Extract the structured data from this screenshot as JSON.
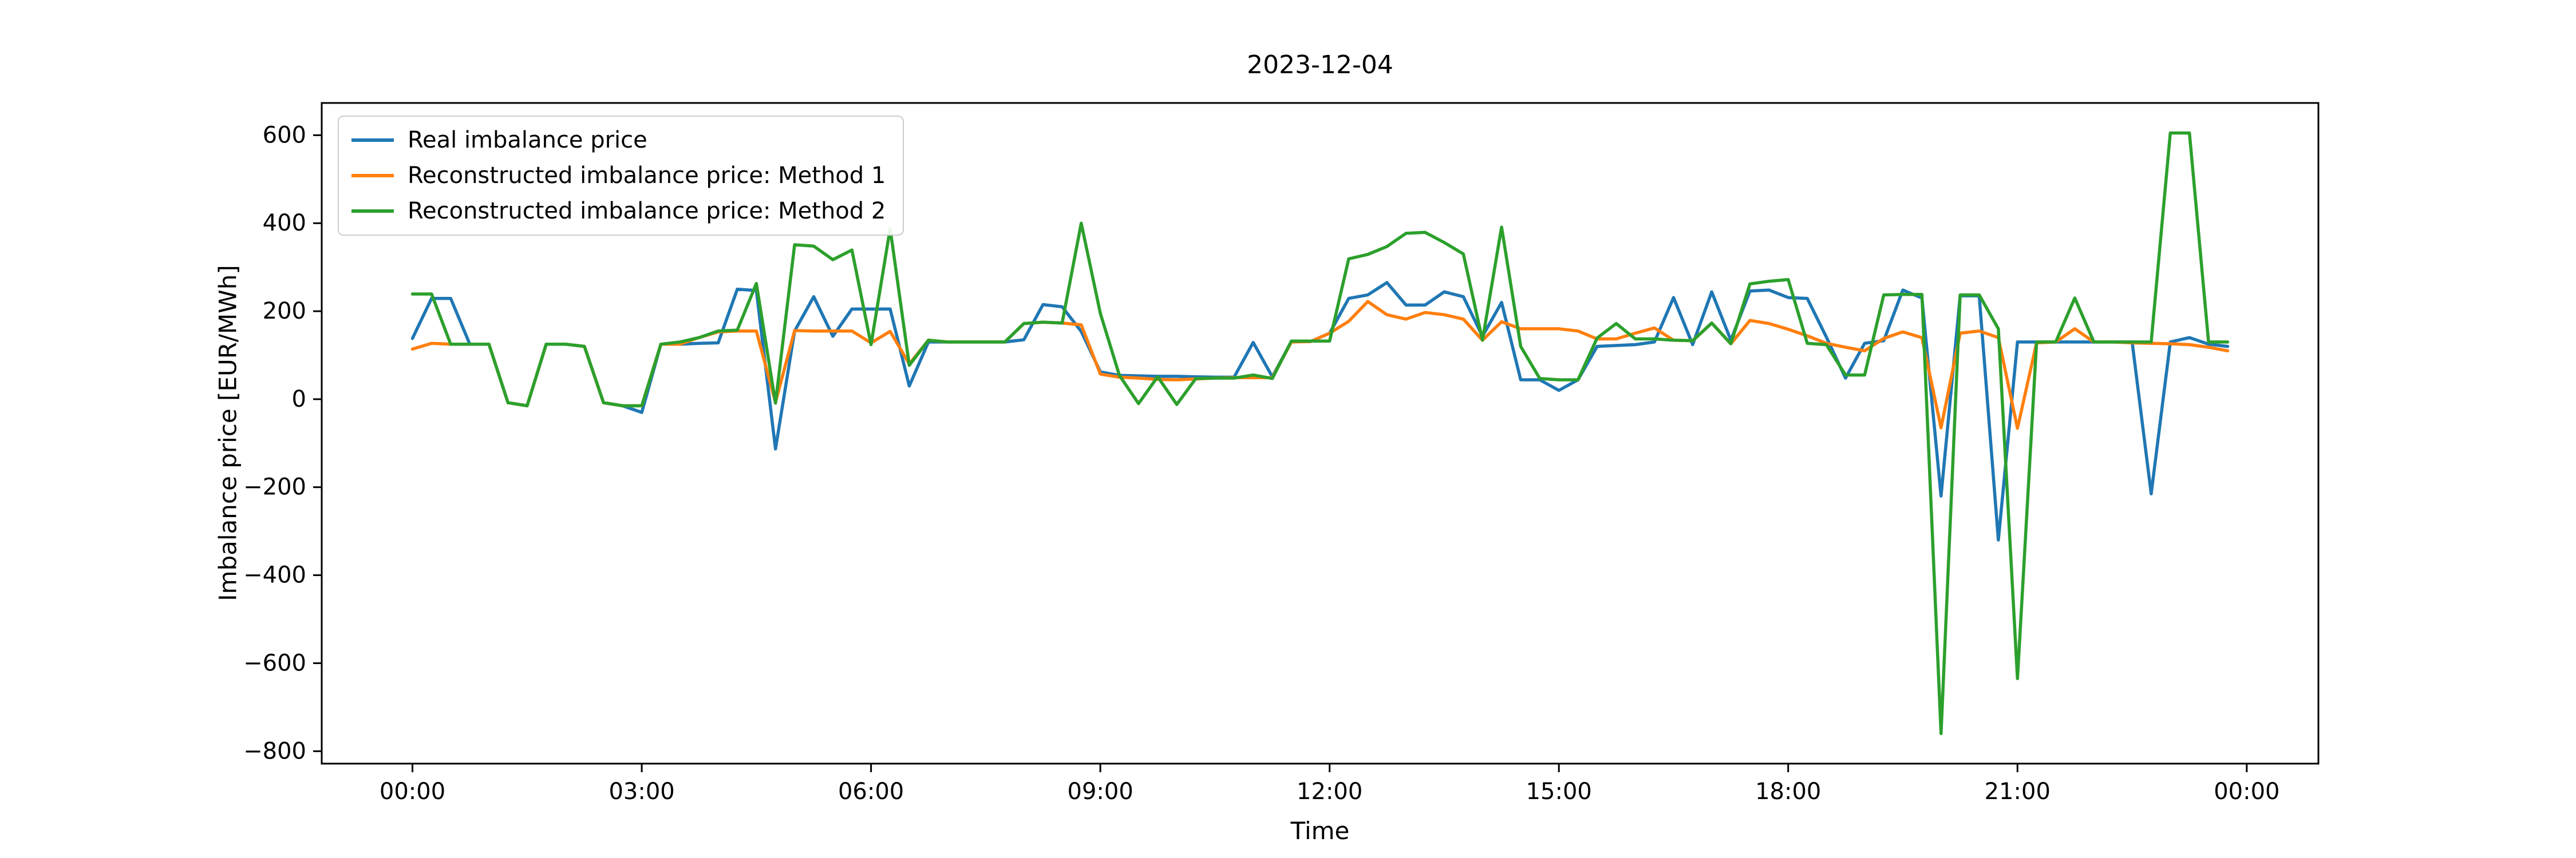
{
  "chart_data": {
    "type": "line",
    "title": "2023-12-04",
    "xlabel": "Time",
    "ylabel": "Imbalance price [EUR/MWh]",
    "grid": false,
    "background_color": "#ffffff",
    "interval_minutes": 15,
    "start_time": "00:00",
    "x_tick_units": [
      0,
      12,
      24,
      36,
      48,
      60,
      72,
      84,
      96
    ],
    "x_tick_labels": [
      "00:00",
      "03:00",
      "06:00",
      "09:00",
      "12:00",
      "15:00",
      "18:00",
      "21:00",
      "00:00"
    ],
    "y_tick_values": [
      600,
      400,
      200,
      0,
      -200,
      -400,
      -600,
      -800
    ],
    "y_tick_labels": [
      "600",
      "400",
      "200",
      "0",
      "−200",
      "−400",
      "−600",
      "−800"
    ],
    "ylim": [
      -828.25,
      673.25
    ],
    "xlim_units": [
      -4.75,
      99.75
    ],
    "legend": {
      "position": "upper-left",
      "entries": [
        {
          "label": "Real imbalance price",
          "color": "#1f77b4"
        },
        {
          "label": "Reconstructed imbalance price: Method 1",
          "color": "#ff7f0e"
        },
        {
          "label": "Reconstructed imbalance price: Method 2",
          "color": "#2ca02c"
        }
      ]
    },
    "series": [
      {
        "name": "Real imbalance price",
        "color": "#1f77b4",
        "values": [
          138,
          229,
          229,
          125,
          125,
          -8,
          -15,
          125,
          125,
          120,
          -8,
          -15,
          -30,
          125,
          125,
          127,
          128,
          250,
          247,
          -113,
          155,
          233,
          143,
          205,
          205,
          205,
          30,
          130,
          130,
          130,
          130,
          130,
          135,
          215,
          210,
          154,
          62,
          54,
          53,
          52,
          52,
          51,
          50,
          50,
          129,
          51,
          131,
          131,
          150,
          229,
          237,
          265,
          214,
          214,
          244,
          233,
          143,
          220,
          44,
          44,
          20,
          44,
          120,
          122,
          124,
          130,
          231,
          124,
          244,
          134,
          246,
          248,
          231,
          229,
          141,
          48,
          127,
          133,
          248,
          230,
          -220,
          235,
          235,
          -320,
          130,
          130,
          130,
          130,
          130,
          130,
          130,
          -215,
          130,
          140,
          125,
          120
        ]
      },
      {
        "name": "Reconstructed imbalance price: Method 1",
        "color": "#ff7f0e",
        "values": [
          114,
          127,
          125,
          125,
          125,
          -8,
          -15,
          125,
          125,
          120,
          -8,
          -15,
          -15,
          125,
          125,
          140,
          153,
          155,
          155,
          -7,
          156,
          155,
          155,
          155,
          128,
          154,
          80,
          134,
          130,
          130,
          130,
          130,
          172,
          175,
          173,
          169,
          57,
          50,
          48,
          45,
          44,
          46,
          48,
          49,
          49,
          49,
          130,
          131,
          150,
          177,
          222,
          192,
          182,
          197,
          192,
          182,
          134,
          176,
          160,
          160,
          160,
          155,
          137,
          137,
          150,
          162,
          134,
          133,
          173,
          126,
          179,
          172,
          159,
          144,
          127,
          118,
          110,
          138,
          153,
          140,
          -65,
          150,
          155,
          140,
          -66,
          128,
          130,
          160,
          130,
          130,
          128,
          127,
          126,
          124,
          118,
          110
        ]
      },
      {
        "name": "Reconstructed imbalance price: Method 2",
        "color": "#2ca02c",
        "values": [
          239,
          239,
          125,
          125,
          125,
          -8,
          -15,
          125,
          125,
          120,
          -8,
          -15,
          -15,
          125,
          130,
          140,
          155,
          157,
          263,
          -9,
          351,
          348,
          317,
          339,
          124,
          388,
          77,
          134,
          130,
          130,
          130,
          130,
          172,
          175,
          173,
          400,
          195,
          54,
          -10,
          51,
          -12,
          47,
          48,
          48,
          55,
          47,
          132,
          132,
          132,
          319,
          329,
          347,
          377,
          379,
          356,
          330,
          134,
          391,
          120,
          47,
          44,
          44,
          139,
          172,
          137,
          137,
          134,
          133,
          173,
          126,
          262,
          268,
          272,
          127,
          124,
          55,
          55,
          237,
          238,
          238,
          -760,
          237,
          237,
          160,
          -635,
          130,
          130,
          230,
          130,
          130,
          130,
          130,
          605,
          605,
          130,
          130
        ]
      }
    ]
  }
}
